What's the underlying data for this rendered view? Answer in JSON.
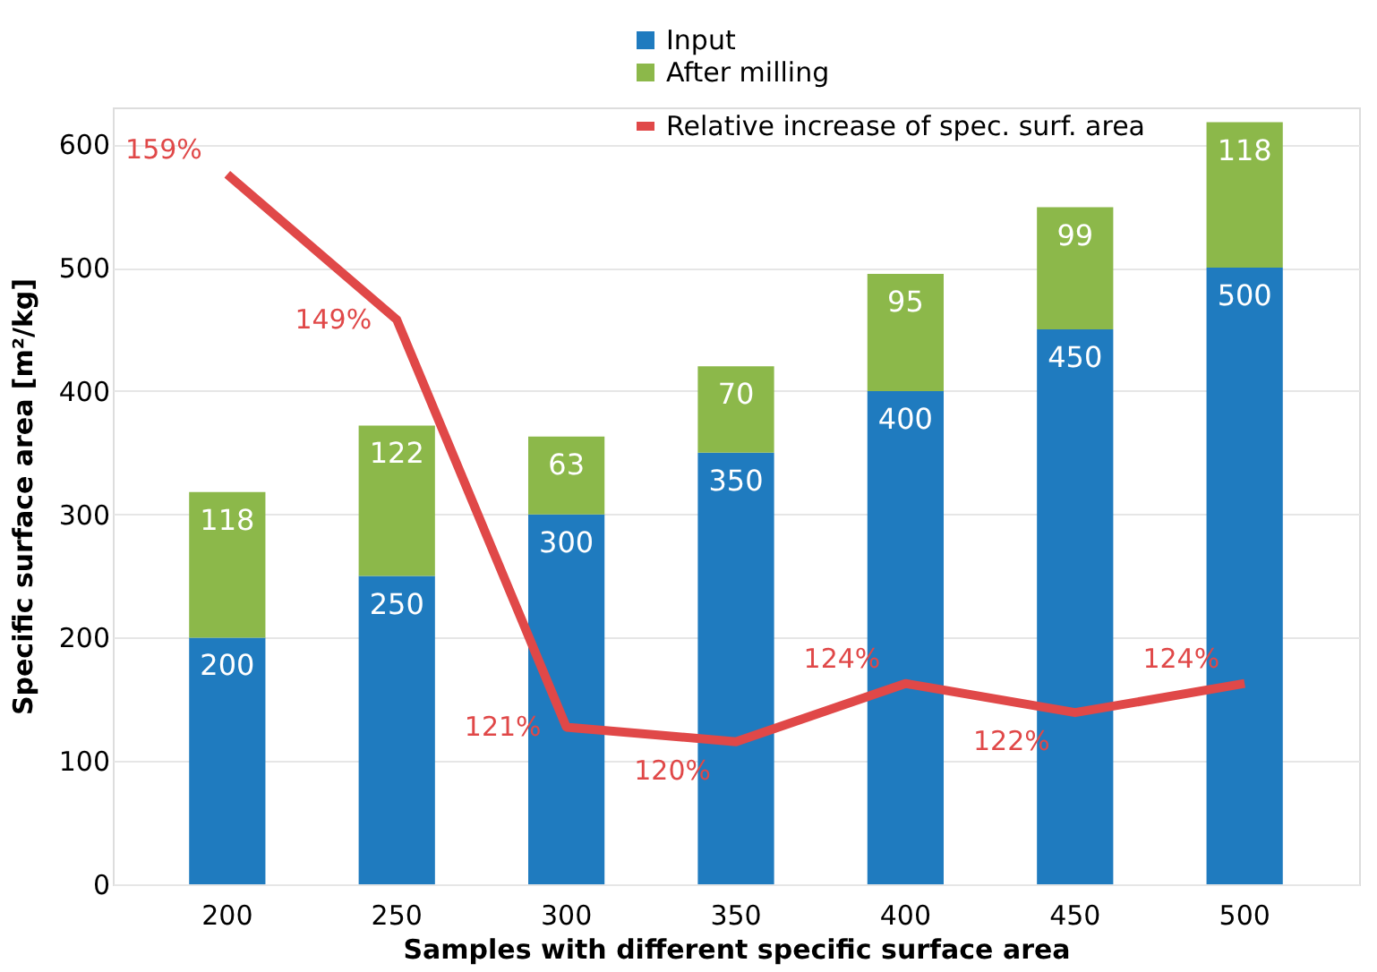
{
  "chart_data": {
    "type": "bar",
    "stacked": true,
    "xlabel": "Samples with different specific surface area",
    "ylabel": "Specific surface area [m²/kg]",
    "categories": [
      "200",
      "250",
      "300",
      "350",
      "400",
      "450",
      "500"
    ],
    "series": [
      {
        "name": "Input",
        "color": "#1f7bbf",
        "values": [
          200,
          250,
          300,
          350,
          400,
          450,
          500
        ]
      },
      {
        "name": "After milling",
        "color": "#8cb84a",
        "values": [
          118,
          122,
          63,
          70,
          95,
          99,
          118
        ]
      },
      {
        "name": "Relative increase of spec. surf. area",
        "type": "line",
        "axis": "y2",
        "color": "#e04848",
        "values": [
          159,
          149,
          121,
          120,
          124,
          122,
          124
        ],
        "value_labels": [
          "159%",
          "149%",
          "121%",
          "120%",
          "124%",
          "122%",
          "124%"
        ]
      }
    ],
    "data_labels": true,
    "y2lim": [
      110.2,
      163.6
    ],
    "tick_labels": [
      "x",
      "y"
    ],
    "ylim": [
      0,
      630
    ],
    "yticks": [
      0,
      100,
      200,
      300,
      400,
      500,
      600
    ],
    "grid": "y",
    "legend": "top",
    "marker": "none",
    "line_style": "solid"
  }
}
